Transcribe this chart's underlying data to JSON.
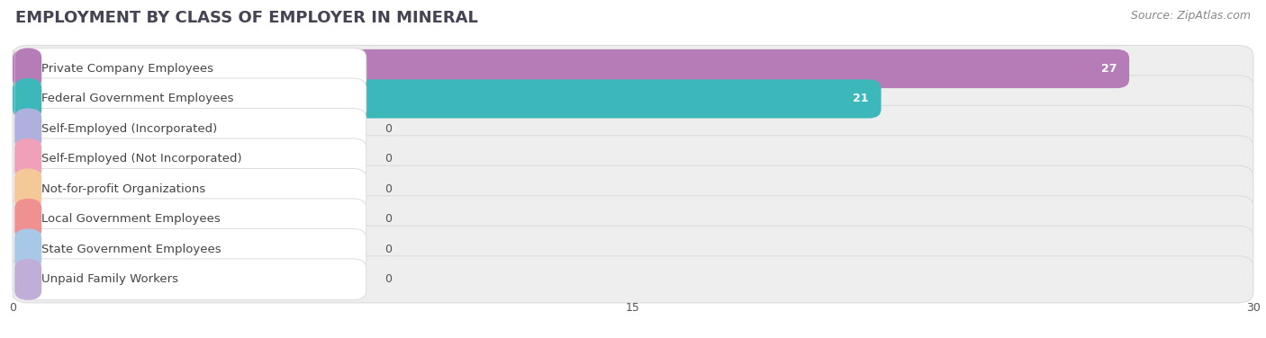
{
  "title": "EMPLOYMENT BY CLASS OF EMPLOYER IN MINERAL",
  "source": "Source: ZipAtlas.com",
  "categories": [
    "Private Company Employees",
    "Federal Government Employees",
    "Self-Employed (Incorporated)",
    "Self-Employed (Not Incorporated)",
    "Not-for-profit Organizations",
    "Local Government Employees",
    "State Government Employees",
    "Unpaid Family Workers"
  ],
  "values": [
    27,
    21,
    0,
    0,
    0,
    0,
    0,
    0
  ],
  "bar_colors": [
    "#b57cb8",
    "#3cb8bb",
    "#b0b0de",
    "#f0a0b8",
    "#f5c898",
    "#f09090",
    "#a8c8e8",
    "#c0aed8"
  ],
  "row_bg_color": "#eeeeee",
  "xlim": [
    0,
    30
  ],
  "xticks": [
    0,
    15,
    30
  ],
  "title_fontsize": 13,
  "source_fontsize": 9,
  "label_fontsize": 9.5,
  "value_fontsize": 9,
  "figsize": [
    14.06,
    3.76
  ],
  "dpi": 100
}
